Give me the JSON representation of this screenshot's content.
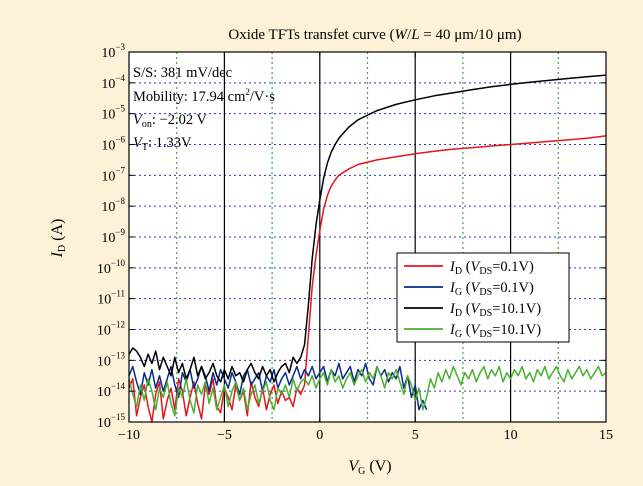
{
  "chart_data": {
    "type": "line",
    "title": {
      "prefix": "Oxide TFTs transfet curve (",
      "var1": "W",
      "slash": "/",
      "var2": "L",
      "suffix": " = 40 μm/10 μm)"
    },
    "xlabel": {
      "main": "V",
      "sub": "G",
      "unit": " (V)"
    },
    "ylabel": {
      "main": "I",
      "sub": "D",
      "unit": " (A)"
    },
    "xlim": [
      -10,
      15
    ],
    "ylim_exp": [
      -15,
      -3
    ],
    "yscale": "log",
    "x_ticks": [
      "−10",
      "−5",
      "0",
      "5",
      "10",
      "15"
    ],
    "x_tick_values": [
      -10,
      -5,
      0,
      5,
      10,
      15
    ],
    "y_tick_exponents": [
      -3,
      -4,
      -5,
      -6,
      -7,
      -8,
      -9,
      -10,
      -11,
      -12,
      -13,
      -14,
      -15
    ],
    "y_tick_base": "10",
    "y_tick_sup": [
      "−3",
      "−4",
      "−5",
      "−6",
      "−7",
      "−8",
      "−9",
      "−10",
      "−11",
      "−12",
      "−13",
      "−14",
      "−15"
    ],
    "grid": {
      "horizontal": "dotted-blue",
      "vertical_solid_x": [
        -5,
        0,
        5,
        10
      ],
      "vertical_dotted_x": [
        -7.5,
        -2.5,
        2.5,
        7.5,
        12.5
      ]
    },
    "annotations": {
      "ss": "S/S: 381 mV/dec",
      "mobility_prefix": "Mobility: 17.94 cm",
      "mobility_sup": "2",
      "mobility_suffix": "/V·s",
      "von_main": "V",
      "von_sub": "on",
      "von_value": ": −2.02 V",
      "vt_main": "V",
      "vt_sub": "T",
      "vt_value": ": 1.33V"
    },
    "legend_position": "center-right",
    "legend": [
      {
        "color": "#e8141e",
        "main": "I",
        "sub": "D",
        "open": " (",
        "vmain": "V",
        "vsub": "DS",
        "cond": "=0.1V)"
      },
      {
        "color": "#0a2a8c",
        "main": "I",
        "sub": "G",
        "open": " (",
        "vmain": "V",
        "vsub": "DS",
        "cond": "=0.1V)"
      },
      {
        "color": "#000000",
        "main": "I",
        "sub": "D",
        "open": " (",
        "vmain": "V",
        "vsub": "DS",
        "cond": "=10.1V)"
      },
      {
        "color": "#4caf30",
        "main": "I",
        "sub": "G",
        "open": " (",
        "vmain": "V",
        "vsub": "DS",
        "cond": "=10.1V)"
      }
    ],
    "series": [
      {
        "name": "ID (VDS=0.1V)",
        "color": "#e8141e",
        "x": [
          -10,
          -9.8,
          -9.6,
          -9.4,
          -9.2,
          -9,
          -8.8,
          -8.6,
          -8.4,
          -8.2,
          -8,
          -7.8,
          -7.6,
          -7.4,
          -7.2,
          -7,
          -6.8,
          -6.6,
          -6.4,
          -6.2,
          -6,
          -5.8,
          -5.6,
          -5.4,
          -5.2,
          -5,
          -4.8,
          -4.6,
          -4.4,
          -4.2,
          -4,
          -3.8,
          -3.6,
          -3.4,
          -3.2,
          -3,
          -2.8,
          -2.6,
          -2.4,
          -2.2,
          -2,
          -1.8,
          -1.6,
          -1.4,
          -1.2,
          -1,
          -0.8,
          -0.6,
          -0.4,
          -0.2,
          0,
          0.2,
          0.4,
          0.6,
          0.8,
          1,
          1.5,
          2,
          3,
          4,
          5,
          6,
          7,
          8,
          9,
          10,
          11,
          12,
          13,
          14,
          15
        ],
        "y_exp": [
          -13.9,
          -13.6,
          -14.8,
          -14.2,
          -13.8,
          -14.5,
          -15,
          -14.1,
          -13.7,
          -14.9,
          -14.3,
          -13.9,
          -14.6,
          -13.6,
          -14,
          -14.8,
          -14.2,
          -13.7,
          -14.4,
          -14.9,
          -13.8,
          -14.1,
          -13.6,
          -14.5,
          -14.7,
          -13.9,
          -14.2,
          -14.6,
          -13.8,
          -14.3,
          -14,
          -14.8,
          -13.7,
          -14.2,
          -14.5,
          -13.9,
          -14.6,
          -14.1,
          -13.8,
          -14.4,
          -14,
          -14.3,
          -14.2,
          -14.5,
          -13.9,
          -14.1,
          -13.8,
          -12.2,
          -10.6,
          -9.6,
          -8.8,
          -8.1,
          -7.65,
          -7.35,
          -7.15,
          -7,
          -6.8,
          -6.65,
          -6.5,
          -6.4,
          -6.3,
          -6.22,
          -6.15,
          -6.1,
          -6.05,
          -6,
          -5.95,
          -5.9,
          -5.85,
          -5.8,
          -5.72
        ]
      },
      {
        "name": "IG (VDS=0.1V)",
        "color": "#0a2a8c",
        "x": [
          -10,
          -9.8,
          -9.6,
          -9.4,
          -9.2,
          -9,
          -8.8,
          -8.6,
          -8.4,
          -8.2,
          -8,
          -7.8,
          -7.6,
          -7.4,
          -7.2,
          -7,
          -6.8,
          -6.6,
          -6.4,
          -6.2,
          -6,
          -5.8,
          -5.6,
          -5.4,
          -5.2,
          -5,
          -4.8,
          -4.6,
          -4.4,
          -4.2,
          -4,
          -3.8,
          -3.6,
          -3.4,
          -3.2,
          -3,
          -2.8,
          -2.6,
          -2.4,
          -2.2,
          -2,
          -1.8,
          -1.6,
          -1.4,
          -1.2,
          -1,
          -0.8,
          -0.6,
          -0.4,
          -0.2,
          0,
          0.2,
          0.4,
          0.6,
          0.8,
          1,
          1.2,
          1.4,
          1.6,
          1.8,
          2,
          2.2,
          2.4,
          2.6,
          2.8,
          3,
          3.2,
          3.4,
          3.6,
          3.8,
          4,
          4.2,
          4.4,
          4.6,
          4.8,
          5,
          5.2,
          5.4,
          5.6
        ],
        "y_exp": [
          -13.5,
          -13.2,
          -13.7,
          -14.1,
          -13.4,
          -13.8,
          -13.3,
          -13.9,
          -13.5,
          -14,
          -13.6,
          -13.2,
          -13.8,
          -14.2,
          -13.4,
          -13.7,
          -13.3,
          -13.9,
          -13.6,
          -13.2,
          -13.5,
          -14,
          -13.4,
          -13.8,
          -13.3,
          -13.6,
          -13.9,
          -13.4,
          -13.7,
          -14.1,
          -13.5,
          -13.3,
          -13.8,
          -13.6,
          -13.4,
          -14,
          -13.5,
          -13.7,
          -13.3,
          -13.9,
          -13.6,
          -13.4,
          -13.8,
          -13.5,
          -13.2,
          -13.6,
          -13.3,
          -13.5,
          -13.2,
          -13.6,
          -13.4,
          -13.2,
          -13.7,
          -13.3,
          -13.5,
          -13.1,
          -13.6,
          -13.4,
          -13.2,
          -13.7,
          -13.3,
          -13.5,
          -13.1,
          -13.6,
          -13.8,
          -13.2,
          -13.5,
          -13.3,
          -13.7,
          -13.4,
          -13.6,
          -13.2,
          -13.9,
          -13.5,
          -14.2,
          -13.8,
          -14.6,
          -14.3,
          -14.6
        ]
      },
      {
        "name": "ID (VDS=10.1V)",
        "color": "#000000",
        "x": [
          -10,
          -9.8,
          -9.6,
          -9.4,
          -9.2,
          -9,
          -8.8,
          -8.6,
          -8.4,
          -8.2,
          -8,
          -7.8,
          -7.6,
          -7.4,
          -7.2,
          -7,
          -6.8,
          -6.6,
          -6.4,
          -6.2,
          -6,
          -5.8,
          -5.6,
          -5.4,
          -5.2,
          -5,
          -4.8,
          -4.6,
          -4.4,
          -4.2,
          -4,
          -3.8,
          -3.6,
          -3.4,
          -3.2,
          -3,
          -2.8,
          -2.6,
          -2.4,
          -2.2,
          -2,
          -1.8,
          -1.6,
          -1.4,
          -1.2,
          -1,
          -0.8,
          -0.6,
          -0.4,
          -0.2,
          0,
          0.2,
          0.4,
          0.6,
          0.8,
          1,
          1.5,
          2,
          3,
          4,
          5,
          6,
          7,
          8,
          9,
          10,
          11,
          12,
          13,
          14,
          15
        ],
        "y_exp": [
          -12.8,
          -12.6,
          -12.7,
          -12.9,
          -13.2,
          -12.8,
          -13.1,
          -12.7,
          -13.3,
          -12.9,
          -13.2,
          -13.5,
          -12.9,
          -13.4,
          -13.1,
          -13.6,
          -13.3,
          -12.9,
          -13.5,
          -13.2,
          -13.6,
          -13.4,
          -13.1,
          -13.5,
          -13.7,
          -13.3,
          -13.6,
          -13.2,
          -13.5,
          -13.4,
          -13.7,
          -13.3,
          -13.1,
          -13.4,
          -13.6,
          -13.2,
          -13.5,
          -13.3,
          -13.7,
          -13.4,
          -13.2,
          -13.1,
          -13.4,
          -12.9,
          -13.1,
          -12.9,
          -12.5,
          -11.2,
          -9.7,
          -8.6,
          -7.8,
          -7.1,
          -6.6,
          -6.25,
          -6,
          -5.8,
          -5.45,
          -5.2,
          -4.9,
          -4.7,
          -4.55,
          -4.42,
          -4.32,
          -4.22,
          -4.13,
          -4.05,
          -3.98,
          -3.92,
          -3.86,
          -3.8,
          -3.75
        ]
      },
      {
        "name": "IG (VDS=10.1V)",
        "color": "#4caf30",
        "x": [
          -10,
          -9.8,
          -9.6,
          -9.4,
          -9.2,
          -9,
          -8.8,
          -8.6,
          -8.4,
          -8.2,
          -8,
          -7.8,
          -7.6,
          -7.4,
          -7.2,
          -7,
          -6.8,
          -6.6,
          -6.4,
          -6.2,
          -6,
          -5.8,
          -5.6,
          -5.4,
          -5.2,
          -5,
          -4.8,
          -4.6,
          -4.4,
          -4.2,
          -4,
          -3.8,
          -3.6,
          -3.4,
          -3.2,
          -3,
          -2.8,
          -2.6,
          -2.4,
          -2.2,
          -2,
          -1.8,
          -1.6,
          -1.4,
          -1.2,
          -1,
          -0.8,
          -0.6,
          -0.4,
          -0.2,
          0,
          0.2,
          0.4,
          0.6,
          0.8,
          1,
          1.2,
          1.4,
          1.6,
          1.8,
          2,
          2.2,
          2.4,
          2.6,
          2.8,
          3,
          3.2,
          3.4,
          3.6,
          3.8,
          4,
          4.2,
          4.4,
          4.6,
          4.8,
          5,
          5.2,
          5.4,
          5.6,
          5.8,
          6,
          6.2,
          6.4,
          6.6,
          6.8,
          7,
          7.2,
          7.4,
          7.6,
          7.8,
          8,
          8.2,
          8.4,
          8.6,
          8.8,
          9,
          9.2,
          9.4,
          9.6,
          9.8,
          10,
          10.2,
          10.4,
          10.6,
          10.8,
          11,
          11.2,
          11.4,
          11.6,
          11.8,
          12,
          12.2,
          12.4,
          12.6,
          12.8,
          13,
          13.2,
          13.4,
          13.6,
          13.8,
          14,
          14.2,
          14.4,
          14.6,
          14.8,
          15
        ],
        "y_exp": [
          -13.6,
          -14.1,
          -14.5,
          -13.8,
          -14.3,
          -13.6,
          -14,
          -14.6,
          -13.9,
          -14.2,
          -13.7,
          -14.4,
          -14.8,
          -13.9,
          -14.2,
          -13.6,
          -14.3,
          -14.7,
          -13.8,
          -14.1,
          -13.7,
          -14.4,
          -13.9,
          -14.6,
          -14.2,
          -13.8,
          -14.5,
          -14,
          -13.7,
          -14.3,
          -13.9,
          -14.6,
          -14.1,
          -13.8,
          -14.4,
          -14,
          -13.7,
          -14.3,
          -14.6,
          -13.9,
          -14.1,
          -13.8,
          -14.2,
          -13.6,
          -14,
          -13.7,
          -13.6,
          -13.8,
          -13.5,
          -13.9,
          -13.6,
          -13.4,
          -13.8,
          -13.3,
          -13.7,
          -13.5,
          -13.9,
          -13.6,
          -13.4,
          -13.8,
          -13.5,
          -13.3,
          -13.7,
          -13.4,
          -13.6,
          -13.2,
          -13.5,
          -13.9,
          -13.4,
          -13.6,
          -13.3,
          -13.7,
          -14.1,
          -13.5,
          -13.8,
          -14.3,
          -13.9,
          -14.6,
          -14.2,
          -13.6,
          -13.9,
          -13.4,
          -13.7,
          -13.3,
          -13.6,
          -13.2,
          -13.5,
          -13.8,
          -13.4,
          -13.6,
          -13.3,
          -13.7,
          -13.4,
          -13.2,
          -13.6,
          -13.3,
          -13.5,
          -13.2,
          -13.7,
          -13.4,
          -13.6,
          -13.3,
          -13.5,
          -13.2,
          -13.6,
          -13.4,
          -13.7,
          -13.3,
          -13.5,
          -13.2,
          -13.6,
          -13.4,
          -13.2,
          -13.5,
          -13.7,
          -13.3,
          -13.6,
          -13.4,
          -13.2,
          -13.5,
          -13.3,
          -13.6,
          -13.4,
          -13.2,
          -13.5,
          -13.4
        ]
      }
    ]
  }
}
